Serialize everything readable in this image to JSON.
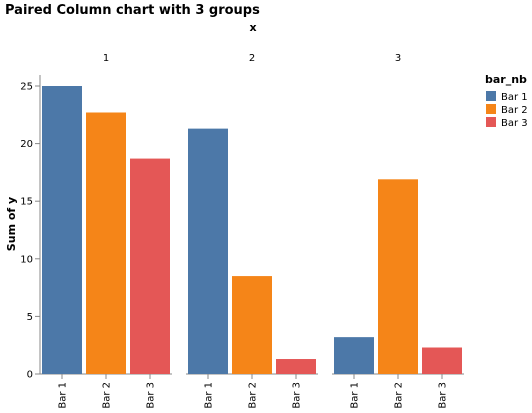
{
  "chart_data": {
    "type": "bar",
    "title": "Paired Column chart with 3 groups",
    "facet_field": "x",
    "facets": [
      "1",
      "2",
      "3"
    ],
    "categories": [
      "Bar 1",
      "Bar 2",
      "Bar 3"
    ],
    "ylabel": "Sum of y",
    "ylim": [
      0,
      25
    ],
    "yticks": [
      0,
      5,
      10,
      15,
      20,
      25
    ],
    "legend": {
      "title": "bar_nb",
      "placement": "top-right",
      "entries": [
        "Bar 1",
        "Bar 2",
        "Bar 3"
      ]
    },
    "colors": {
      "Bar 1": "#4c78a8",
      "Bar 2": "#f58518",
      "Bar 3": "#e45756"
    },
    "series": [
      {
        "facet": "1",
        "values": [
          25.0,
          22.7,
          18.7
        ]
      },
      {
        "facet": "2",
        "values": [
          21.3,
          8.5,
          1.3
        ]
      },
      {
        "facet": "3",
        "values": [
          3.2,
          16.9,
          2.3
        ]
      }
    ],
    "grid": false
  }
}
